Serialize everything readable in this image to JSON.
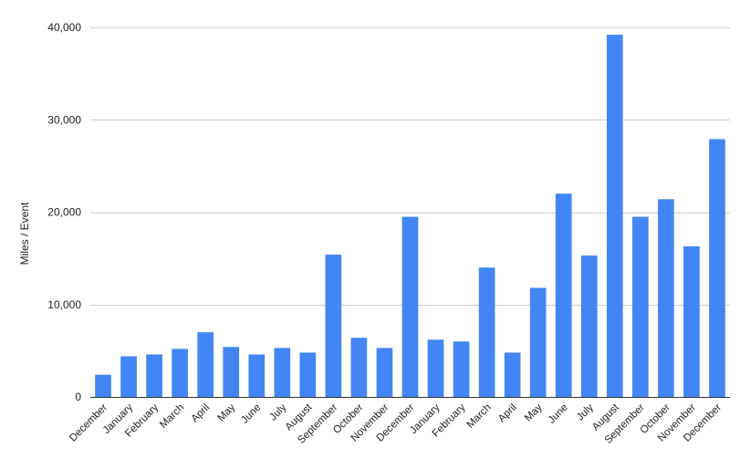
{
  "chart_data": {
    "type": "bar",
    "title": "",
    "xlabel": "",
    "ylabel": "Miles / Event",
    "ylim": [
      0,
      40000
    ],
    "yticks": [
      0,
      10000,
      20000,
      30000,
      40000
    ],
    "ytick_labels": [
      "0",
      "10,000",
      "20,000",
      "30,000",
      "40,000"
    ],
    "grid": true,
    "legend": "none",
    "bar_color": "#4285f4",
    "categories": [
      "December",
      "January",
      "February",
      "March",
      "April",
      "May",
      "June",
      "July",
      "August",
      "September",
      "October",
      "November",
      "December",
      "January",
      "February",
      "March",
      "April",
      "May",
      "June",
      "July",
      "August",
      "September",
      "October",
      "November",
      "December"
    ],
    "values": [
      2400,
      4400,
      4600,
      5200,
      7000,
      5400,
      4600,
      5300,
      4800,
      15400,
      6400,
      5300,
      19500,
      6200,
      6000,
      14000,
      4800,
      11800,
      22000,
      15300,
      39200,
      19500,
      21400,
      16300,
      27900
    ]
  }
}
